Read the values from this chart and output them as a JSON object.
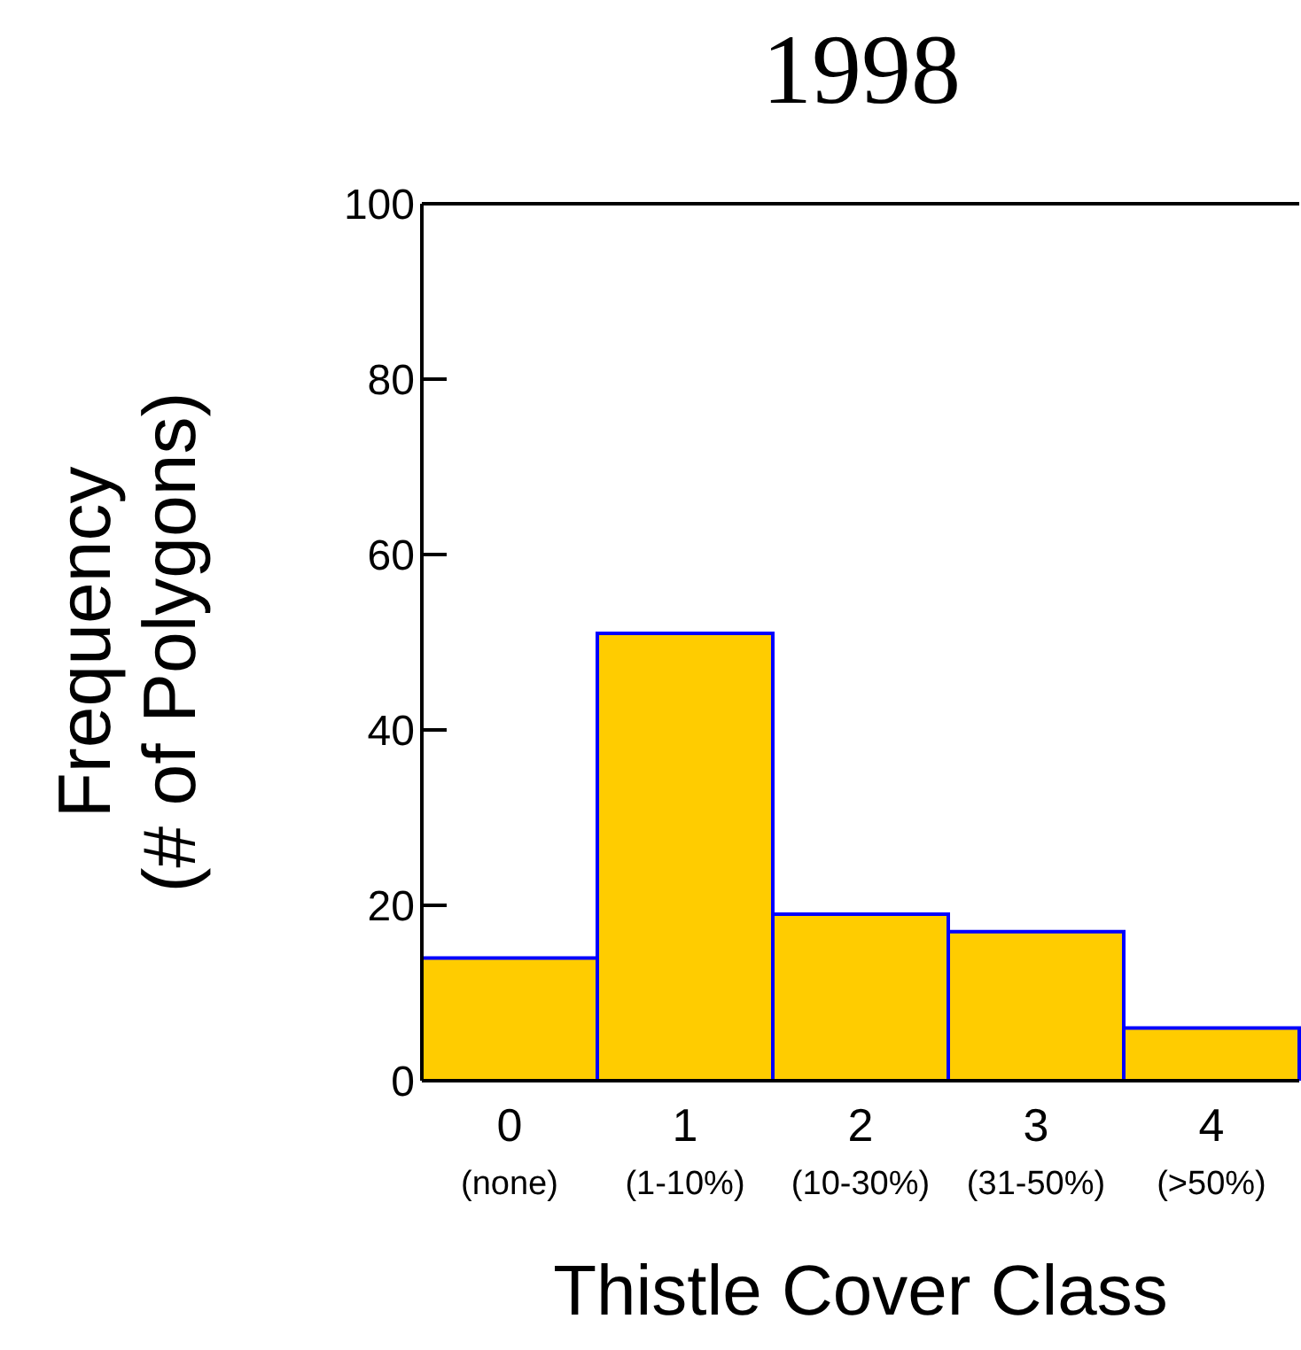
{
  "chart_data": {
    "type": "bar",
    "title": "1998",
    "xlabel": "Thistle Cover Class",
    "ylabel": "Frequency\n(# of Polygons)",
    "categories": [
      "0\n(none)",
      "1\n(1-10%)",
      "2\n(10-30%)",
      "3\n(31-50%)",
      "4\n(>50%)"
    ],
    "values": [
      14,
      51,
      19,
      17,
      6
    ],
    "color": "#ffcc00",
    "ylim": [
      0,
      100
    ],
    "yticks": [
      0,
      20,
      40,
      60,
      80,
      100
    ],
    "grid": false,
    "legend": false
  }
}
